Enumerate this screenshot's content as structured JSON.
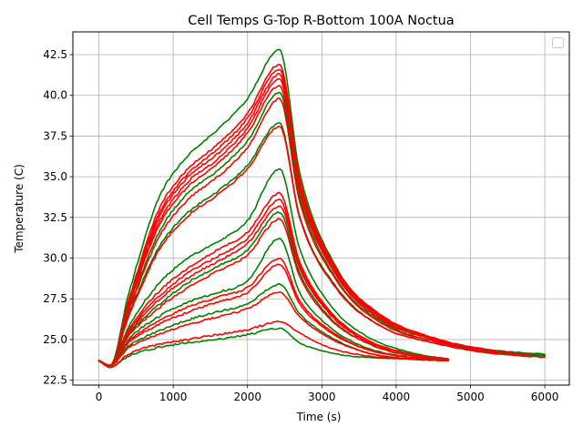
{
  "chart_data": {
    "type": "line",
    "title": "Cell Temps G-Top R-Bottom 100A Noctua",
    "xlabel": "Time (s)",
    "ylabel": "Temperature (C)",
    "xlim": [
      -350,
      6330
    ],
    "ylim": [
      22.2,
      43.9
    ],
    "xticks": [
      0,
      1000,
      2000,
      3000,
      4000,
      5000,
      6000
    ],
    "yticks": [
      22.5,
      25.0,
      27.5,
      30.0,
      32.5,
      35.0,
      37.5,
      40.0,
      42.5
    ],
    "xtick_labels": [
      "0",
      "1000",
      "2000",
      "3000",
      "4000",
      "5000",
      "6000"
    ],
    "ytick_labels": [
      "22.5",
      "25.0",
      "27.5",
      "30.0",
      "32.5",
      "35.0",
      "37.5",
      "40.0",
      "42.5"
    ],
    "grid": true,
    "legend": {
      "placement": "top-right",
      "entries": []
    },
    "colors": {
      "top": "#008000",
      "bottom": "#ff0000"
    },
    "series": [
      {
        "group": "top",
        "color": "#008000",
        "peak_time": 2430,
        "end_time": 6000,
        "x": [
          0,
          150,
          400,
          800,
          1200,
          1600,
          2000,
          2430,
          2700,
          3200,
          3800,
          4500,
          5200,
          6000
        ],
        "y": [
          23.7,
          23.4,
          27.8,
          33.6,
          36.3,
          37.9,
          39.8,
          42.8,
          35.3,
          29.4,
          26.4,
          25.0,
          24.4,
          24.1
        ]
      },
      {
        "group": "bottom",
        "color": "#ff0000",
        "peak_time": 2430,
        "end_time": 6000,
        "x": [
          0,
          150,
          400,
          800,
          1200,
          1600,
          2000,
          2430,
          2700,
          3200,
          3800,
          4500,
          5200,
          6000
        ],
        "y": [
          23.7,
          23.4,
          27.4,
          32.9,
          35.5,
          37.0,
          38.9,
          41.9,
          34.9,
          29.3,
          26.5,
          25.1,
          24.4,
          24.0
        ]
      },
      {
        "group": "bottom",
        "color": "#ff0000",
        "peak_time": 2430,
        "end_time": 6000,
        "x": [
          0,
          150,
          400,
          800,
          1200,
          1600,
          2000,
          2430,
          2700,
          3200,
          3800,
          4500,
          5200,
          6000
        ],
        "y": [
          23.7,
          23.4,
          27.3,
          32.6,
          35.2,
          36.7,
          38.6,
          41.6,
          34.7,
          29.2,
          26.4,
          25.1,
          24.4,
          24.0
        ]
      },
      {
        "group": "bottom",
        "color": "#ff0000",
        "peak_time": 2430,
        "end_time": 6000,
        "x": [
          0,
          150,
          400,
          800,
          1200,
          1600,
          2000,
          2430,
          2700,
          3200,
          3800,
          4500,
          5200,
          6000
        ],
        "y": [
          23.7,
          23.4,
          27.2,
          32.4,
          35.0,
          36.4,
          38.3,
          41.3,
          34.5,
          29.1,
          26.3,
          25.0,
          24.3,
          24.0
        ]
      },
      {
        "group": "bottom",
        "color": "#ff0000",
        "peak_time": 2430,
        "end_time": 6000,
        "x": [
          0,
          150,
          400,
          800,
          1200,
          1600,
          2000,
          2430,
          2700,
          3200,
          3800,
          4500,
          5200,
          6000
        ],
        "y": [
          23.7,
          23.4,
          27.1,
          32.1,
          34.7,
          36.1,
          38.0,
          41.0,
          34.3,
          29.0,
          26.3,
          25.0,
          24.3,
          24.0
        ]
      },
      {
        "group": "bottom",
        "color": "#ff0000",
        "peak_time": 2430,
        "end_time": 6000,
        "x": [
          0,
          150,
          400,
          800,
          1200,
          1600,
          2000,
          2430,
          2700,
          3200,
          3800,
          4500,
          5200,
          6000
        ],
        "y": [
          23.7,
          23.4,
          27.0,
          31.9,
          34.4,
          35.8,
          37.7,
          40.6,
          34.1,
          28.9,
          26.2,
          25.0,
          24.3,
          24.0
        ]
      },
      {
        "group": "top",
        "color": "#008000",
        "peak_time": 2430,
        "end_time": 6000,
        "x": [
          0,
          150,
          400,
          800,
          1200,
          1600,
          2000,
          2430,
          2700,
          3200,
          3800,
          4500,
          5200,
          6000
        ],
        "y": [
          23.7,
          23.4,
          26.8,
          31.5,
          34.0,
          35.4,
          37.2,
          40.2,
          33.8,
          28.7,
          26.1,
          24.9,
          24.3,
          24.0
        ]
      },
      {
        "group": "bottom",
        "color": "#ff0000",
        "peak_time": 2430,
        "end_time": 6000,
        "x": [
          0,
          150,
          400,
          800,
          1200,
          1600,
          2000,
          2430,
          2700,
          3200,
          3800,
          4500,
          5200,
          6000
        ],
        "y": [
          23.7,
          23.4,
          26.7,
          31.2,
          33.6,
          35.0,
          36.8,
          39.8,
          33.5,
          28.6,
          26.0,
          24.9,
          24.3,
          24.0
        ]
      },
      {
        "group": "top",
        "color": "#008000",
        "peak_time": 2430,
        "end_time": 6000,
        "x": [
          0,
          150,
          400,
          800,
          1200,
          1600,
          2000,
          2430,
          2700,
          3200,
          3800,
          4500,
          5200,
          6000
        ],
        "y": [
          23.7,
          23.4,
          26.5,
          30.6,
          32.8,
          34.1,
          35.7,
          38.3,
          32.6,
          28.2,
          25.8,
          24.8,
          24.2,
          24.0
        ]
      },
      {
        "group": "bottom",
        "color": "#ff0000",
        "peak_time": 2430,
        "end_time": 6000,
        "x": [
          0,
          150,
          400,
          800,
          1200,
          1600,
          2000,
          2430,
          2700,
          3200,
          3800,
          4500,
          5200,
          6000
        ],
        "y": [
          23.7,
          23.4,
          26.4,
          30.4,
          32.6,
          33.9,
          35.5,
          38.1,
          32.5,
          28.1,
          25.8,
          24.8,
          24.2,
          23.9
        ]
      },
      {
        "group": "top",
        "color": "#008000",
        "peak_time": 2430,
        "end_time": 4700,
        "x": [
          0,
          150,
          400,
          800,
          1200,
          1600,
          2000,
          2430,
          2700,
          3100,
          3600,
          4200,
          4700
        ],
        "y": [
          23.7,
          23.4,
          25.8,
          28.4,
          30.0,
          31.0,
          32.3,
          35.5,
          30.6,
          27.2,
          25.2,
          24.2,
          23.8
        ]
      },
      {
        "group": "bottom",
        "color": "#ff0000",
        "peak_time": 2430,
        "end_time": 4700,
        "x": [
          0,
          150,
          400,
          800,
          1200,
          1600,
          2000,
          2430,
          2700,
          3100,
          3600,
          4200,
          4700
        ],
        "y": [
          23.7,
          23.4,
          25.6,
          27.9,
          29.4,
          30.5,
          31.6,
          34.0,
          29.8,
          26.8,
          25.0,
          24.1,
          23.8
        ]
      },
      {
        "group": "bottom",
        "color": "#ff0000",
        "peak_time": 2430,
        "end_time": 4700,
        "x": [
          0,
          150,
          400,
          800,
          1200,
          1600,
          2000,
          2430,
          2700,
          3100,
          3600,
          4200,
          4700
        ],
        "y": [
          23.7,
          23.4,
          25.5,
          27.6,
          29.1,
          30.1,
          31.2,
          33.6,
          29.6,
          26.7,
          25.0,
          24.1,
          23.8
        ]
      },
      {
        "group": "bottom",
        "color": "#ff0000",
        "peak_time": 2430,
        "end_time": 4700,
        "x": [
          0,
          150,
          400,
          800,
          1200,
          1600,
          2000,
          2430,
          2700,
          3100,
          3600,
          4200,
          4700
        ],
        "y": [
          23.7,
          23.4,
          25.4,
          27.4,
          28.8,
          29.8,
          30.9,
          33.2,
          29.4,
          26.6,
          24.9,
          24.1,
          23.8
        ]
      },
      {
        "group": "top",
        "color": "#008000",
        "peak_time": 2430,
        "end_time": 4700,
        "x": [
          0,
          150,
          400,
          800,
          1200,
          1600,
          2000,
          2430,
          2700,
          3100,
          3600,
          4200,
          4700
        ],
        "y": [
          23.7,
          23.4,
          25.3,
          27.1,
          28.5,
          29.5,
          30.5,
          32.8,
          29.1,
          26.4,
          24.8,
          24.0,
          23.8
        ]
      },
      {
        "group": "bottom",
        "color": "#ff0000",
        "peak_time": 2430,
        "end_time": 4700,
        "x": [
          0,
          150,
          400,
          800,
          1200,
          1600,
          2000,
          2430,
          2700,
          3100,
          3600,
          4200,
          4700
        ],
        "y": [
          23.7,
          23.4,
          25.2,
          26.9,
          28.2,
          29.2,
          30.2,
          32.4,
          28.9,
          26.3,
          24.8,
          24.0,
          23.8
        ]
      },
      {
        "group": "top",
        "color": "#008000",
        "peak_time": 2430,
        "end_time": 4700,
        "x": [
          0,
          150,
          400,
          800,
          1200,
          1600,
          2000,
          2430,
          2700,
          3100,
          3600,
          4200,
          4700
        ],
        "y": [
          23.7,
          23.4,
          25.0,
          26.4,
          27.3,
          27.9,
          28.6,
          31.2,
          27.9,
          25.8,
          24.5,
          23.9,
          23.7
        ]
      },
      {
        "group": "bottom",
        "color": "#ff0000",
        "peak_time": 2430,
        "end_time": 4700,
        "x": [
          0,
          150,
          400,
          800,
          1200,
          1600,
          2000,
          2430,
          2700,
          3100,
          3600,
          4200,
          4700
        ],
        "y": [
          23.7,
          23.4,
          24.9,
          26.1,
          27.0,
          27.6,
          28.2,
          30.0,
          27.4,
          25.6,
          24.4,
          23.9,
          23.7
        ]
      },
      {
        "group": "bottom",
        "color": "#ff0000",
        "peak_time": 2430,
        "end_time": 4700,
        "x": [
          0,
          150,
          400,
          800,
          1200,
          1600,
          2000,
          2430,
          2700,
          3100,
          3600,
          4200,
          4700
        ],
        "y": [
          23.7,
          23.4,
          24.8,
          25.9,
          26.7,
          27.3,
          27.9,
          29.6,
          27.2,
          25.5,
          24.4,
          23.9,
          23.7
        ]
      },
      {
        "group": "top",
        "color": "#008000",
        "peak_time": 2430,
        "end_time": 4700,
        "x": [
          0,
          150,
          400,
          800,
          1200,
          1600,
          2000,
          2430,
          2700,
          3100,
          3600,
          4200,
          4700
        ],
        "y": [
          23.7,
          23.4,
          24.6,
          25.5,
          26.2,
          26.7,
          27.2,
          28.4,
          26.6,
          25.2,
          24.2,
          23.8,
          23.7
        ]
      },
      {
        "group": "bottom",
        "color": "#ff0000",
        "peak_time": 2430,
        "end_time": 4700,
        "x": [
          0,
          150,
          400,
          800,
          1200,
          1600,
          2000,
          2430,
          2700,
          3100,
          3600,
          4200,
          4700
        ],
        "y": [
          23.7,
          23.4,
          24.5,
          25.3,
          25.9,
          26.4,
          26.9,
          27.9,
          26.4,
          25.1,
          24.2,
          23.8,
          23.7
        ]
      },
      {
        "group": "top",
        "color": "#008000",
        "peak_time": 2430,
        "end_time": 4700,
        "x": [
          0,
          150,
          400,
          800,
          1200,
          1600,
          2000,
          2430,
          2700,
          3100,
          3600,
          4200,
          4700
        ],
        "y": [
          23.7,
          23.3,
          24.0,
          24.5,
          24.8,
          25.0,
          25.3,
          25.7,
          24.8,
          24.2,
          23.9,
          23.8,
          23.7
        ]
      },
      {
        "group": "bottom",
        "color": "#ff0000",
        "peak_time": 2430,
        "end_time": 4700,
        "x": [
          0,
          150,
          400,
          800,
          1200,
          1600,
          2000,
          2430,
          2700,
          3100,
          3600,
          4200,
          4700
        ],
        "y": [
          23.7,
          23.3,
          24.1,
          24.7,
          25.0,
          25.3,
          25.6,
          26.1,
          25.4,
          24.5,
          24.0,
          23.8,
          23.7
        ]
      }
    ]
  }
}
